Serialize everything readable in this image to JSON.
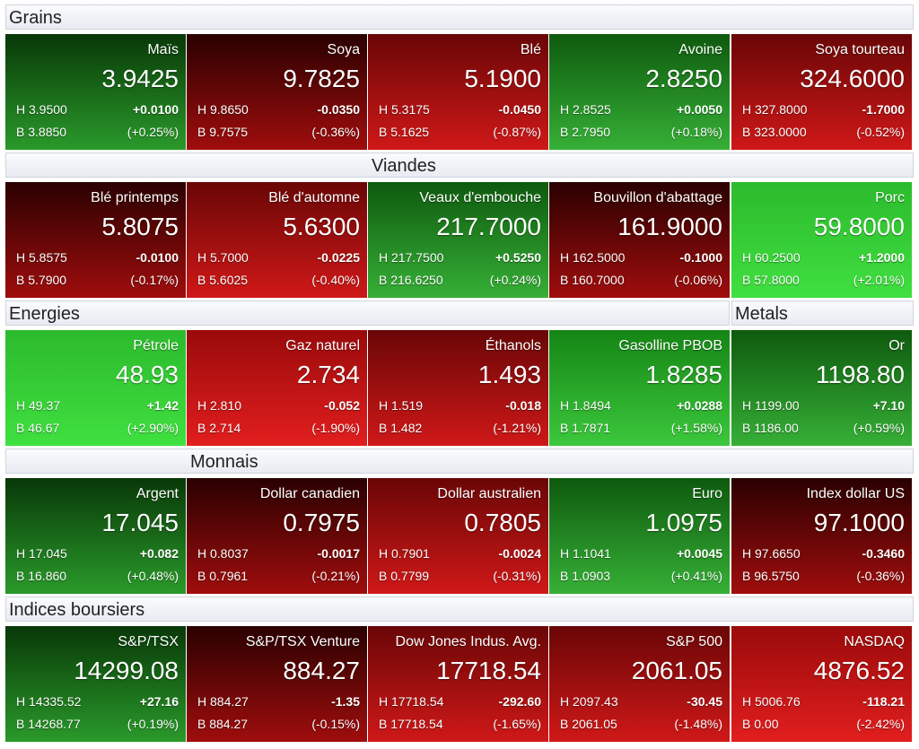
{
  "sections": [
    {
      "headers": [
        {
          "title": "Grains"
        }
      ],
      "tiles": [
        {
          "name": "Maïs",
          "last": "3.9425",
          "high": "H 3.9500",
          "low": "B 3.8850",
          "change": "+0.0100",
          "pct": "(+0.25%)",
          "colors": [
            "#083808",
            "#2a9a2a"
          ]
        },
        {
          "name": "Soya",
          "last": "9.7825",
          "high": "H 9.8650",
          "low": "B 9.7575",
          "change": "-0.0350",
          "pct": "(-0.36%)",
          "colors": [
            "#2a0000",
            "#a00d0d"
          ]
        },
        {
          "name": "Blé",
          "last": "5.1900",
          "high": "H 5.3175",
          "low": "B 5.1625",
          "change": "-0.0450",
          "pct": "(-0.87%)",
          "colors": [
            "#6a0606",
            "#d01818"
          ]
        },
        {
          "name": "Avoine",
          "last": "2.8250",
          "high": "H 2.8525",
          "low": "B 2.7950",
          "change": "+0.0050",
          "pct": "(+0.18%)",
          "colors": [
            "#0e5a0e",
            "#36b036"
          ]
        },
        {
          "name": "Soya tourteau",
          "last": "324.6000",
          "high": "H 327.8000",
          "low": "B 323.0000",
          "change": "-1.7000",
          "pct": "(-0.52%)",
          "colors": [
            "#6a0606",
            "#d01818"
          ]
        }
      ]
    },
    {
      "headers": [
        {
          "title": "Viandes"
        }
      ],
      "tiles": [
        {
          "name": "Blé printemps",
          "last": "5.8075",
          "high": "H 5.8575",
          "low": "B 5.7900",
          "change": "-0.0100",
          "pct": "(-0.17%)",
          "colors": [
            "#2a0000",
            "#a00d0d"
          ]
        },
        {
          "name": "Blé d'automne",
          "last": "5.6300",
          "high": "H 5.7000",
          "low": "B 5.6025",
          "change": "-0.0225",
          "pct": "(-0.40%)",
          "colors": [
            "#6a0606",
            "#d01818"
          ]
        },
        {
          "name": "Veaux d'embouche",
          "last": "217.7000",
          "high": "H 217.7500",
          "low": "B 216.6250",
          "change": "+0.5250",
          "pct": "(+0.24%)",
          "colors": [
            "#0e5a0e",
            "#36b036"
          ]
        },
        {
          "name": "Bouvillon d'abattage",
          "last": "161.9000",
          "high": "H 162.5000",
          "low": "B 160.7000",
          "change": "-0.1000",
          "pct": "(-0.06%)",
          "colors": [
            "#2a0000",
            "#a00d0d"
          ]
        },
        {
          "name": "Porc",
          "last": "59.8000",
          "high": "H 60.2500",
          "low": "B 57.8000",
          "change": "+1.2000",
          "pct": "(+2.01%)",
          "colors": [
            "#2cba2c",
            "#40e040"
          ]
        }
      ]
    },
    {
      "headers": [
        {
          "title": "Energies"
        },
        {
          "title": "Metals"
        }
      ],
      "tiles": [
        {
          "name": "Pétrole",
          "last": "48.93",
          "high": "H 49.37",
          "low": "B 46.67",
          "change": "+1.42",
          "pct": "(+2.90%)",
          "colors": [
            "#2cba2c",
            "#40e040"
          ]
        },
        {
          "name": "Gaz naturel",
          "last": "2.734",
          "high": "H 2.810",
          "low": "B 2.714",
          "change": "-0.052",
          "pct": "(-1.90%)",
          "colors": [
            "#9a0a0a",
            "#e21e1e"
          ]
        },
        {
          "name": "Éthanols",
          "last": "1.493",
          "high": "H 1.519",
          "low": "B 1.482",
          "change": "-0.018",
          "pct": "(-1.21%)",
          "colors": [
            "#6a0606",
            "#d01818"
          ]
        },
        {
          "name": "Gasolline PBOB",
          "last": "1.8285",
          "high": "H 1.8494",
          "low": "B 1.7871",
          "change": "+0.0288",
          "pct": "(+1.58%)",
          "colors": [
            "#158515",
            "#3cc83c"
          ]
        },
        {
          "name": "Or",
          "last": "1198.80",
          "high": "H 1199.00",
          "low": "B 1186.00",
          "change": "+7.10",
          "pct": "(+0.59%)",
          "colors": [
            "#0e5a0e",
            "#36b036"
          ]
        }
      ]
    },
    {
      "headers": [
        {
          "title": "Monnais"
        }
      ],
      "tiles": [
        {
          "name": "Argent",
          "last": "17.045",
          "high": "H 17.045",
          "low": "B 16.860",
          "change": "+0.082",
          "pct": "(+0.48%)",
          "colors": [
            "#083808",
            "#2a9a2a"
          ]
        },
        {
          "name": "Dollar canadien",
          "last": "0.7975",
          "high": "H 0.8037",
          "low": "B 0.7961",
          "change": "-0.0017",
          "pct": "(-0.21%)",
          "colors": [
            "#2a0000",
            "#a00d0d"
          ]
        },
        {
          "name": "Dollar australien",
          "last": "0.7805",
          "high": "H 0.7901",
          "low": "B 0.7799",
          "change": "-0.0024",
          "pct": "(-0.31%)",
          "colors": [
            "#6a0606",
            "#d01818"
          ]
        },
        {
          "name": "Euro",
          "last": "1.0975",
          "high": "H 1.1041",
          "low": "B 1.0903",
          "change": "+0.0045",
          "pct": "(+0.41%)",
          "colors": [
            "#0e5a0e",
            "#36b036"
          ]
        },
        {
          "name": "Index dollar US",
          "last": "97.1000",
          "high": "H 97.6650",
          "low": "B 96.5750",
          "change": "-0.3460",
          "pct": "(-0.36%)",
          "colors": [
            "#2a0000",
            "#a00d0d"
          ]
        }
      ]
    },
    {
      "headers": [
        {
          "title": "Indices boursiers"
        }
      ],
      "tiles": [
        {
          "name": "S&P/TSX",
          "last": "14299.08",
          "high": "H 14335.52",
          "low": "B 14268.77",
          "change": "+27.16",
          "pct": "(+0.19%)",
          "colors": [
            "#083808",
            "#2a9a2a"
          ]
        },
        {
          "name": "S&P/TSX Venture",
          "last": "884.27",
          "high": "H 884.27",
          "low": "B 884.27",
          "change": "-1.35",
          "pct": "(-0.15%)",
          "colors": [
            "#2a0000",
            "#a00d0d"
          ]
        },
        {
          "name": "Dow Jones Indus. Avg.",
          "last": "17718.54",
          "high": "H 17718.54",
          "low": "B 17718.54",
          "change": "-292.60",
          "pct": "(-1.65%)",
          "colors": [
            "#6a0606",
            "#d01818"
          ]
        },
        {
          "name": "S&P 500",
          "last": "2061.05",
          "high": "H 2097.43",
          "low": "B 2061.05",
          "change": "-30.45",
          "pct": "(-1.48%)",
          "colors": [
            "#6a0606",
            "#d01818"
          ]
        },
        {
          "name": "NASDAQ",
          "last": "4876.52",
          "high": "H 5006.76",
          "low": "B 0.00",
          "change": "-118.21",
          "pct": "(-2.42%)",
          "colors": [
            "#9a0a0a",
            "#e21e1e"
          ]
        }
      ]
    }
  ]
}
